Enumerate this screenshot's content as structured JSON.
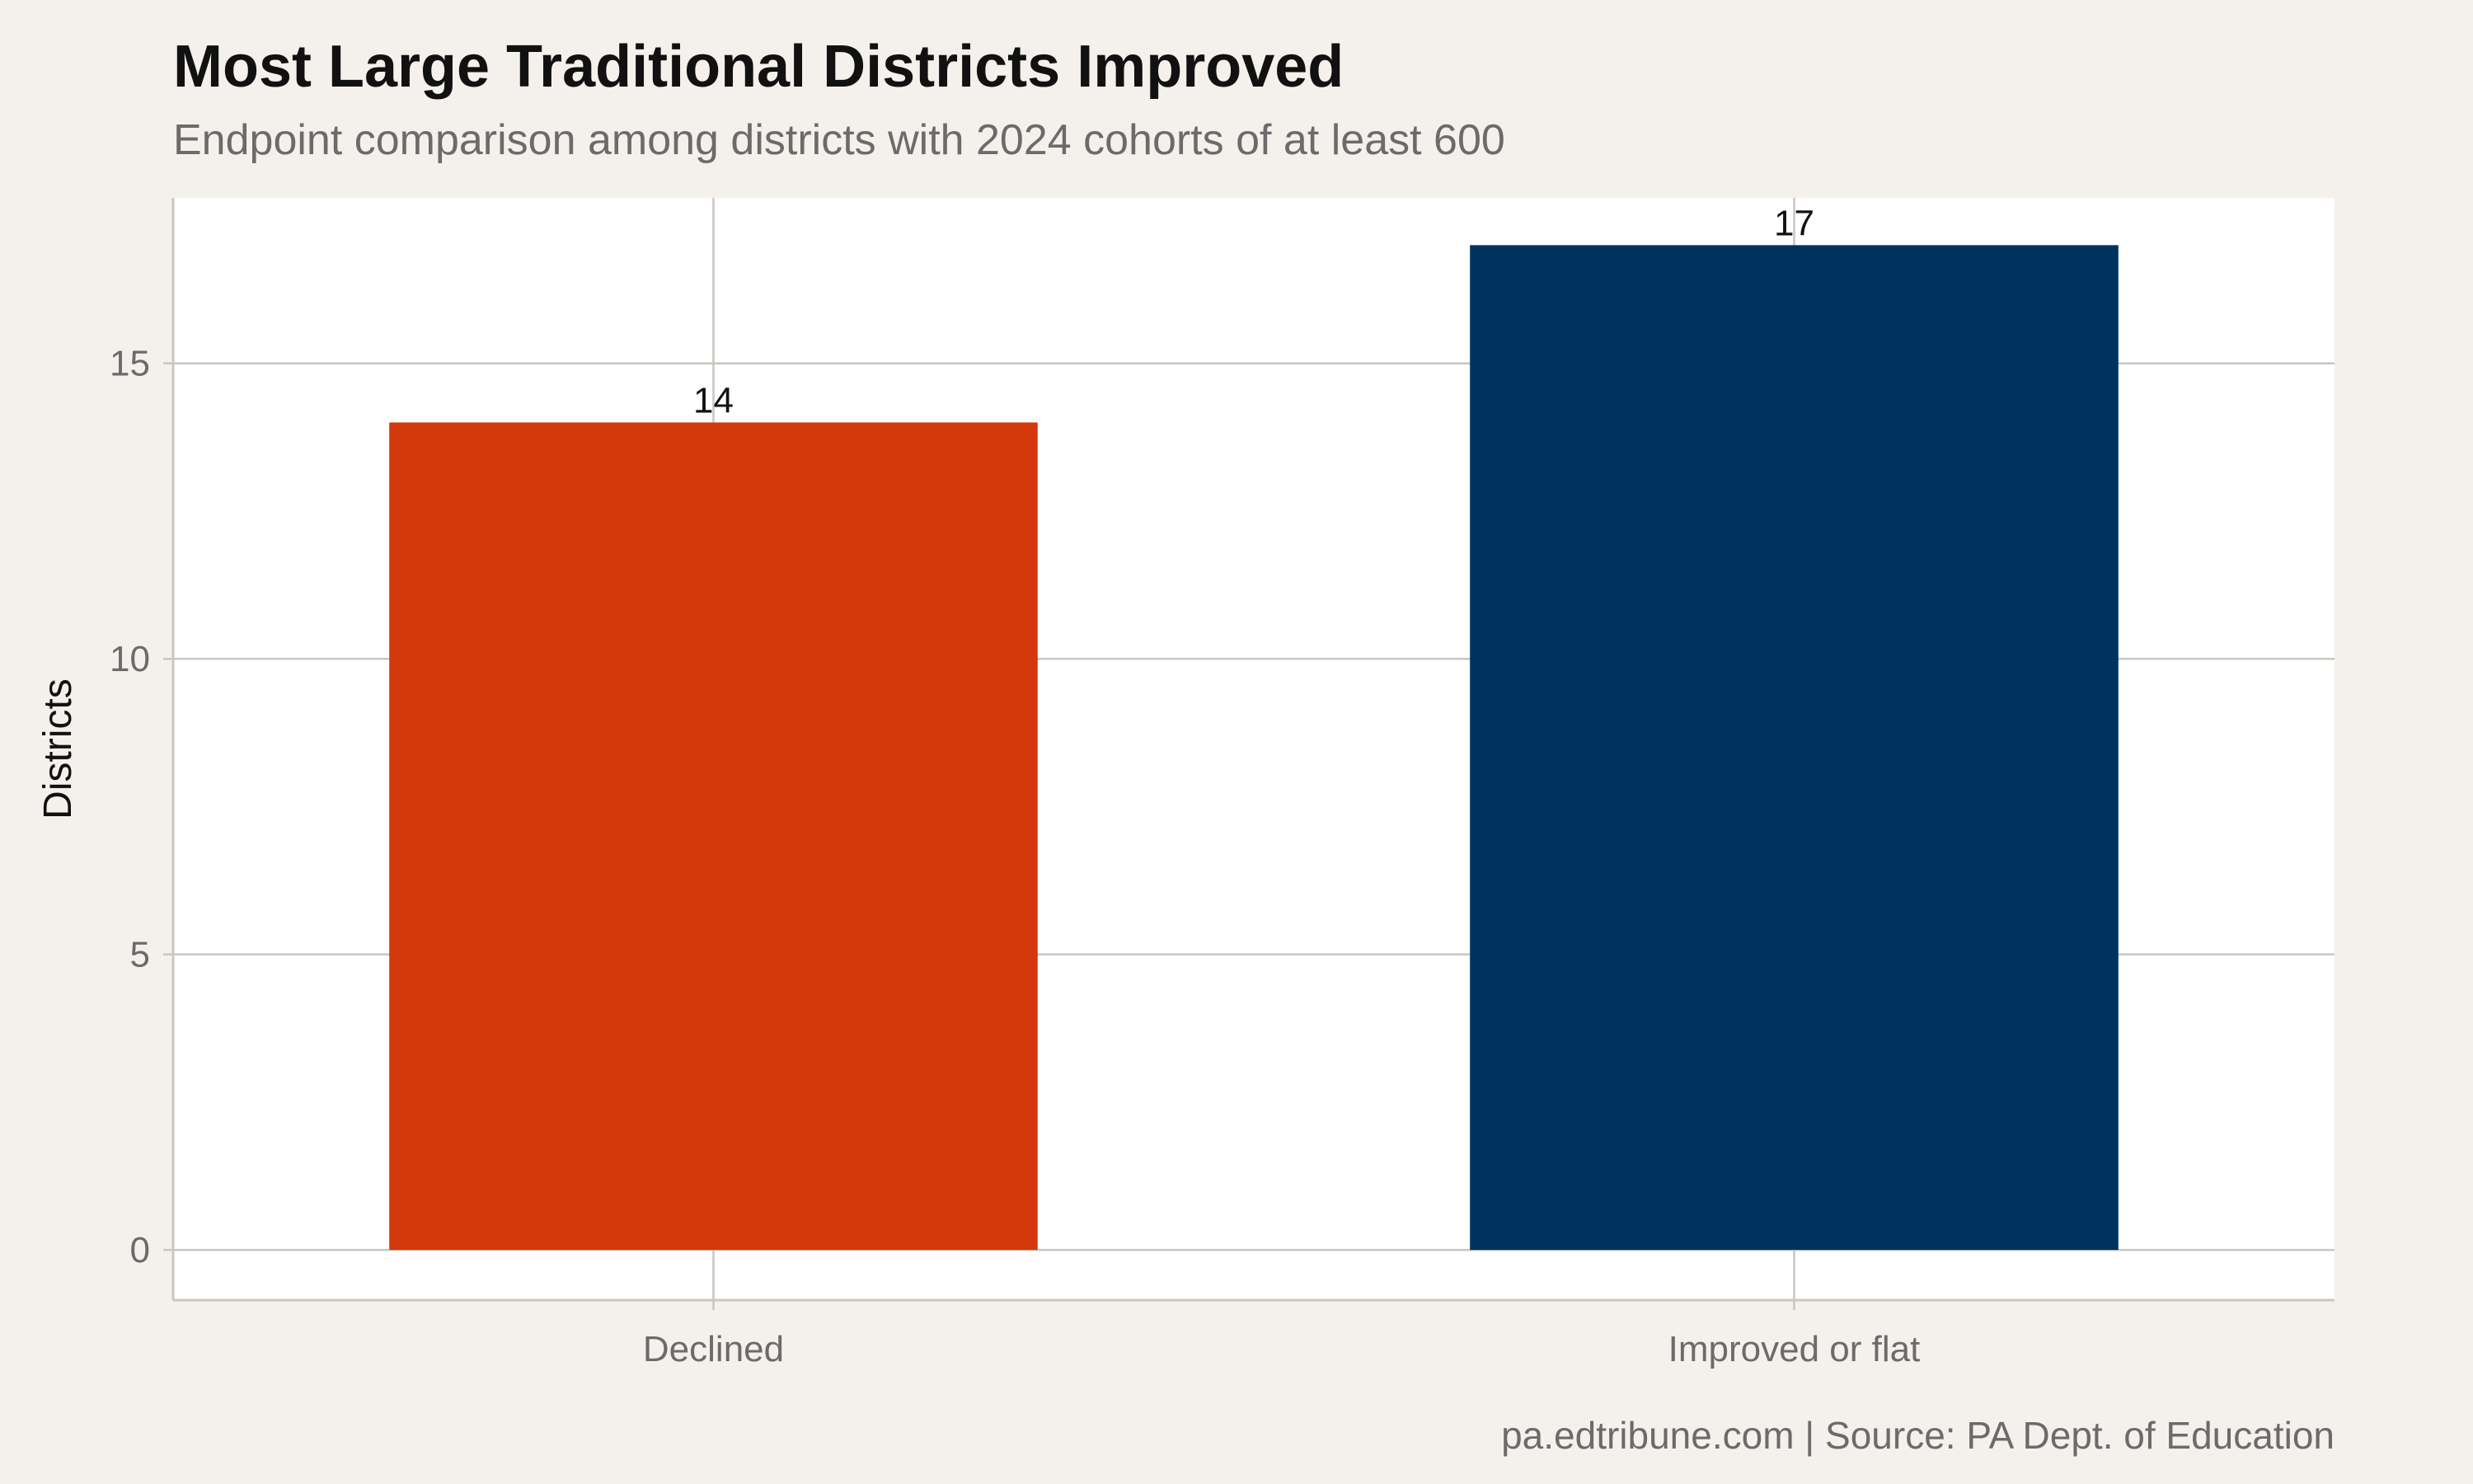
{
  "chart_data": {
    "type": "bar",
    "title": "Most Large Traditional Districts Improved",
    "subtitle": "Endpoint comparison among districts with 2024 cohorts of at least 600",
    "xlabel": "",
    "ylabel": "Districts",
    "categories": [
      "Declined",
      "Improved or flat"
    ],
    "values": [
      14,
      17
    ],
    "data_labels": [
      "14",
      "17"
    ],
    "bar_colors": [
      "#d4380d",
      "#00325f"
    ],
    "ylim": [
      -0.85,
      17.8
    ],
    "yticks": [
      0,
      5,
      10,
      15
    ],
    "ytick_labels": [
      "0",
      "5",
      "10",
      "15"
    ],
    "grid": true,
    "legend": "none",
    "caption": "pa.edtribune.com | Source: PA Dept. of Education"
  },
  "colors": {
    "background": "#f4f1ec",
    "panel": "#ffffff",
    "grid": "#c8c6bd",
    "axis_text": "#6b6b6b"
  }
}
